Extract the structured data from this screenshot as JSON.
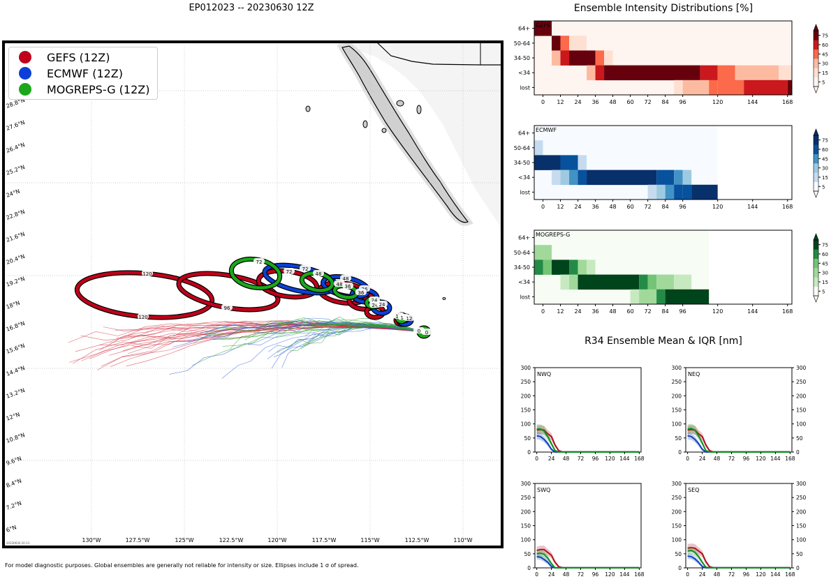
{
  "map": {
    "title": "EP012023 -- 20230630 12Z",
    "footnote": "For model diagnostic purposes. Global ensembles are generally not reliable for intensity or size. Ellipses include 1 σ of spread.",
    "stamp": "20230630 20:13",
    "legend": [
      {
        "label": "GEFS (12Z)",
        "color": "#c0001a"
      },
      {
        "label": "ECMWF (12Z)",
        "color": "#0a40d8"
      },
      {
        "label": "MOGREPS-G (12Z)",
        "color": "#1aa81a"
      }
    ],
    "lon_ticks": [
      "130°W",
      "127.5°W",
      "125°W",
      "122.5°W",
      "120°W",
      "117.5°W",
      "115°W",
      "112.5°W",
      "110°W"
    ],
    "lat_ticks": [
      "6°N",
      "7.2°N",
      "8.4°N",
      "9.6°N",
      "10.8°N",
      "12°N",
      "13.2°N",
      "14.4°N",
      "15.6°N",
      "16.8°N",
      "18°N",
      "19.2°N",
      "20.4°N",
      "21.6°N",
      "22.8°N",
      "24°N",
      "25.2°N",
      "26.4°N",
      "27.6°N",
      "28.8°N"
    ],
    "hour_labels": [
      "120",
      "96",
      "72",
      "48",
      "36",
      "24",
      "12",
      "0"
    ]
  },
  "chart_data": [
    {
      "type": "heatmap",
      "title": "Ensemble Intensity Distributions [%]",
      "model": "GEFS",
      "rows": [
        "64+",
        "50-64",
        "34-50",
        "<34",
        "lost"
      ],
      "x_ticks": [
        0,
        12,
        24,
        36,
        48,
        60,
        72,
        84,
        96,
        120,
        144,
        168
      ],
      "colorbar_ticks": [
        5,
        15,
        30,
        45,
        60,
        75
      ],
      "cells": [
        {
          "row": "64+",
          "x0": -6,
          "x1": 6,
          "level": 5
        },
        {
          "row": "50-64",
          "x0": 6,
          "x1": 12,
          "level": 5
        },
        {
          "row": "50-64",
          "x0": 12,
          "x1": 18,
          "level": 3
        },
        {
          "row": "50-64",
          "x0": 18,
          "x1": 30,
          "level": 1
        },
        {
          "row": "34-50",
          "x0": 6,
          "x1": 12,
          "level": 2
        },
        {
          "row": "34-50",
          "x0": 12,
          "x1": 18,
          "level": 4
        },
        {
          "row": "34-50",
          "x0": 18,
          "x1": 36,
          "level": 5
        },
        {
          "row": "34-50",
          "x0": 36,
          "x1": 42,
          "level": 3
        },
        {
          "row": "34-50",
          "x0": 42,
          "x1": 48,
          "level": 1
        },
        {
          "row": "<34",
          "x0": 30,
          "x1": 36,
          "level": 2
        },
        {
          "row": "<34",
          "x0": 36,
          "x1": 42,
          "level": 4
        },
        {
          "row": "<34",
          "x0": 42,
          "x1": 108,
          "level": 5
        },
        {
          "row": "<34",
          "x0": 108,
          "x1": 120,
          "level": 4
        },
        {
          "row": "<34",
          "x0": 120,
          "x1": 132,
          "level": 3
        },
        {
          "row": "<34",
          "x0": 132,
          "x1": 162,
          "level": 2
        },
        {
          "row": "<34",
          "x0": 162,
          "x1": 171,
          "level": 1
        },
        {
          "row": "lost",
          "x0": 90,
          "x1": 96,
          "level": 1
        },
        {
          "row": "lost",
          "x0": 96,
          "x1": 114,
          "level": 2
        },
        {
          "row": "lost",
          "x0": 114,
          "x1": 120,
          "level": 3
        },
        {
          "row": "lost",
          "x0": 120,
          "x1": 138,
          "level": 3
        },
        {
          "row": "lost",
          "x0": 138,
          "x1": 168,
          "level": 4
        },
        {
          "row": "lost",
          "x0": 168,
          "x1": 171,
          "level": 5
        }
      ],
      "x_end": 171
    },
    {
      "type": "heatmap",
      "model": "ECMWF",
      "rows": [
        "64+",
        "50-64",
        "34-50",
        "<34",
        "lost"
      ],
      "x_ticks": [
        0,
        12,
        24,
        36,
        48,
        60,
        72,
        84,
        96,
        120,
        144,
        168
      ],
      "colorbar_ticks": [
        5,
        15,
        30,
        45,
        60,
        75
      ],
      "cells": [
        {
          "row": "50-64",
          "x0": -6,
          "x1": 0,
          "level": 1
        },
        {
          "row": "34-50",
          "x0": -6,
          "x1": 12,
          "level": 5
        },
        {
          "row": "34-50",
          "x0": 12,
          "x1": 24,
          "level": 4
        },
        {
          "row": "34-50",
          "x0": 24,
          "x1": 30,
          "level": 1
        },
        {
          "row": "<34",
          "x0": 6,
          "x1": 12,
          "level": 1
        },
        {
          "row": "<34",
          "x0": 12,
          "x1": 18,
          "level": 2
        },
        {
          "row": "<34",
          "x0": 18,
          "x1": 24,
          "level": 3
        },
        {
          "row": "<34",
          "x0": 24,
          "x1": 30,
          "level": 4
        },
        {
          "row": "<34",
          "x0": 30,
          "x1": 78,
          "level": 5
        },
        {
          "row": "<34",
          "x0": 78,
          "x1": 90,
          "level": 4
        },
        {
          "row": "<34",
          "x0": 90,
          "x1": 96,
          "level": 3
        },
        {
          "row": "<34",
          "x0": 96,
          "x1": 102,
          "level": 2
        },
        {
          "row": "lost",
          "x0": 72,
          "x1": 78,
          "level": 1
        },
        {
          "row": "lost",
          "x0": 78,
          "x1": 84,
          "level": 2
        },
        {
          "row": "lost",
          "x0": 84,
          "x1": 90,
          "level": 3
        },
        {
          "row": "lost",
          "x0": 90,
          "x1": 96,
          "level": 4
        },
        {
          "row": "lost",
          "x0": 96,
          "x1": 102,
          "level": 4
        },
        {
          "row": "lost",
          "x0": 102,
          "x1": 120,
          "level": 5
        }
      ],
      "x_end": 120
    },
    {
      "type": "heatmap",
      "model": "MOGREPS-G",
      "rows": [
        "64+",
        "50-64",
        "34-50",
        "<34",
        "lost"
      ],
      "x_ticks": [
        0,
        12,
        24,
        36,
        48,
        60,
        72,
        84,
        96,
        120,
        144,
        168
      ],
      "colorbar_ticks": [
        5,
        15,
        30,
        45,
        60,
        75
      ],
      "cells": [
        {
          "row": "50-64",
          "x0": -6,
          "x1": 6,
          "level": 2
        },
        {
          "row": "34-50",
          "x0": -6,
          "x1": 0,
          "level": 4
        },
        {
          "row": "34-50",
          "x0": 0,
          "x1": 6,
          "level": 3
        },
        {
          "row": "34-50",
          "x0": 6,
          "x1": 18,
          "level": 5
        },
        {
          "row": "34-50",
          "x0": 18,
          "x1": 24,
          "level": 4
        },
        {
          "row": "34-50",
          "x0": 24,
          "x1": 30,
          "level": 2
        },
        {
          "row": "34-50",
          "x0": 30,
          "x1": 36,
          "level": 1
        },
        {
          "row": "<34",
          "x0": 12,
          "x1": 18,
          "level": 1
        },
        {
          "row": "<34",
          "x0": 18,
          "x1": 24,
          "level": 2
        },
        {
          "row": "<34",
          "x0": 24,
          "x1": 66,
          "level": 5
        },
        {
          "row": "<34",
          "x0": 66,
          "x1": 72,
          "level": 4
        },
        {
          "row": "<34",
          "x0": 72,
          "x1": 78,
          "level": 3
        },
        {
          "row": "<34",
          "x0": 78,
          "x1": 90,
          "level": 2
        },
        {
          "row": "<34",
          "x0": 90,
          "x1": 102,
          "level": 1
        },
        {
          "row": "lost",
          "x0": 60,
          "x1": 66,
          "level": 1
        },
        {
          "row": "lost",
          "x0": 66,
          "x1": 78,
          "level": 2
        },
        {
          "row": "lost",
          "x0": 78,
          "x1": 84,
          "level": 4
        },
        {
          "row": "lost",
          "x0": 84,
          "x1": 114,
          "level": 5
        }
      ],
      "x_end": 114
    },
    {
      "type": "line",
      "title": "R34 Ensemble Mean & IQR [nm]",
      "panels": [
        "NWQ",
        "NEQ",
        "SWQ",
        "SEQ"
      ],
      "x_ticks": [
        0,
        24,
        48,
        72,
        96,
        120,
        144,
        168
      ],
      "y_ticks": [
        0,
        50,
        100,
        150,
        200,
        250,
        300
      ],
      "ylim": [
        0,
        300
      ],
      "xlim": [
        -3,
        171
      ],
      "series": [
        {
          "name": "GEFS",
          "color": "#b01020",
          "x": [
            0,
            6,
            12,
            18,
            24,
            30,
            36,
            42,
            48,
            168
          ],
          "NWQ": [
            78,
            80,
            78,
            65,
            55,
            25,
            5,
            0,
            0,
            0
          ],
          "NEQ": [
            78,
            80,
            78,
            65,
            55,
            25,
            5,
            0,
            0,
            0
          ],
          "SWQ": [
            62,
            65,
            65,
            55,
            45,
            20,
            4,
            0,
            0,
            0
          ],
          "SEQ": [
            70,
            72,
            70,
            60,
            50,
            22,
            4,
            0,
            0,
            0
          ]
        },
        {
          "name": "ECMWF",
          "color": "#1040c0",
          "x": [
            0,
            6,
            12,
            18,
            24,
            30,
            36,
            168
          ],
          "NWQ": [
            58,
            55,
            45,
            30,
            10,
            0,
            0,
            0
          ],
          "NEQ": [
            58,
            55,
            45,
            30,
            10,
            0,
            0,
            0
          ],
          "SWQ": [
            40,
            38,
            30,
            20,
            5,
            0,
            0,
            0
          ],
          "SEQ": [
            42,
            40,
            32,
            20,
            5,
            0,
            0,
            0
          ]
        },
        {
          "name": "MOGREPS-G",
          "color": "#109020",
          "x": [
            0,
            6,
            12,
            18,
            24,
            30,
            36,
            168
          ],
          "NWQ": [
            82,
            82,
            75,
            55,
            30,
            5,
            0,
            0
          ],
          "NEQ": [
            82,
            84,
            78,
            58,
            32,
            5,
            0,
            0
          ],
          "SWQ": [
            50,
            52,
            48,
            35,
            15,
            0,
            0,
            0
          ],
          "SEQ": [
            60,
            62,
            55,
            40,
            20,
            2,
            0,
            0
          ]
        }
      ]
    }
  ]
}
